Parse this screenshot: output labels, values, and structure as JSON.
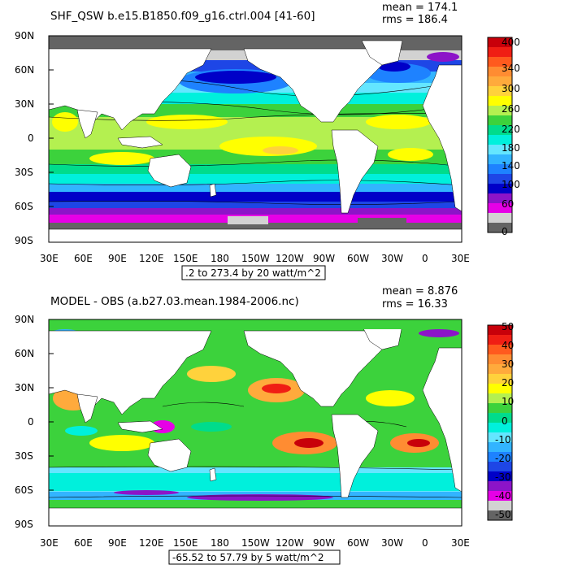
{
  "panels": [
    {
      "id": "top",
      "title": "SHF_QSW b.e15.B1850.f09_g16.ctrl.004 [41-60]",
      "mean_label": "mean = 174.1",
      "rms_label": "rms = 186.4",
      "range_label": ".2 to 273.4 by 20 watt/m^2",
      "lat_labels": [
        "90N",
        "60N",
        "30N",
        "0",
        "30S",
        "60S",
        "90S"
      ],
      "lon_labels": [
        "30E",
        "60E",
        "90E",
        "120E",
        "150E",
        "180",
        "150W",
        "120W",
        "90W",
        "60W",
        "30W",
        "0",
        "30E"
      ],
      "colorbar": {
        "labels": [
          "400",
          "340",
          "300",
          "260",
          "220",
          "180",
          "140",
          "100",
          "60",
          "0"
        ],
        "colors": [
          "#c8000a",
          "#f01e14",
          "#ff5a1e",
          "#ff8c32",
          "#ffaa3c",
          "#ffd23c",
          "#ffff00",
          "#b4f050",
          "#3cd23c",
          "#00dc8c",
          "#00f0dc",
          "#64e6ff",
          "#32b4ff",
          "#1e82ff",
          "#1e46e6",
          "#0000c8",
          "#8c14c8",
          "#e600e6",
          "#d2d2d2",
          "#646464"
        ]
      }
    },
    {
      "id": "bottom",
      "title": "MODEL - OBS (a.b27.03.mean.1984-2006.nc)",
      "mean_label": "mean = 8.876",
      "rms_label": "rms = 16.33",
      "range_label": "-65.52 to 57.79 by 5 watt/m^2",
      "lat_labels": [
        "90N",
        "60N",
        "30N",
        "0",
        "30S",
        "60S",
        "90S"
      ],
      "lon_labels": [
        "30E",
        "60E",
        "90E",
        "120E",
        "150E",
        "180",
        "150W",
        "120W",
        "90W",
        "60W",
        "30W",
        "0",
        "30E"
      ],
      "colorbar": {
        "labels": [
          "50",
          "40",
          "30",
          "20",
          "10",
          "0",
          "-10",
          "-20",
          "-30",
          "-40",
          "-50"
        ],
        "colors": [
          "#c8000a",
          "#f01e14",
          "#ff5a1e",
          "#ff8c32",
          "#ffaa3c",
          "#ffd23c",
          "#ffff00",
          "#b4f050",
          "#3cd23c",
          "#00dc8c",
          "#00f0dc",
          "#64e6ff",
          "#32b4ff",
          "#1e82ff",
          "#1e46e6",
          "#0000c8",
          "#8c14c8",
          "#e600e6",
          "#d2d2d2",
          "#646464"
        ]
      }
    }
  ]
}
